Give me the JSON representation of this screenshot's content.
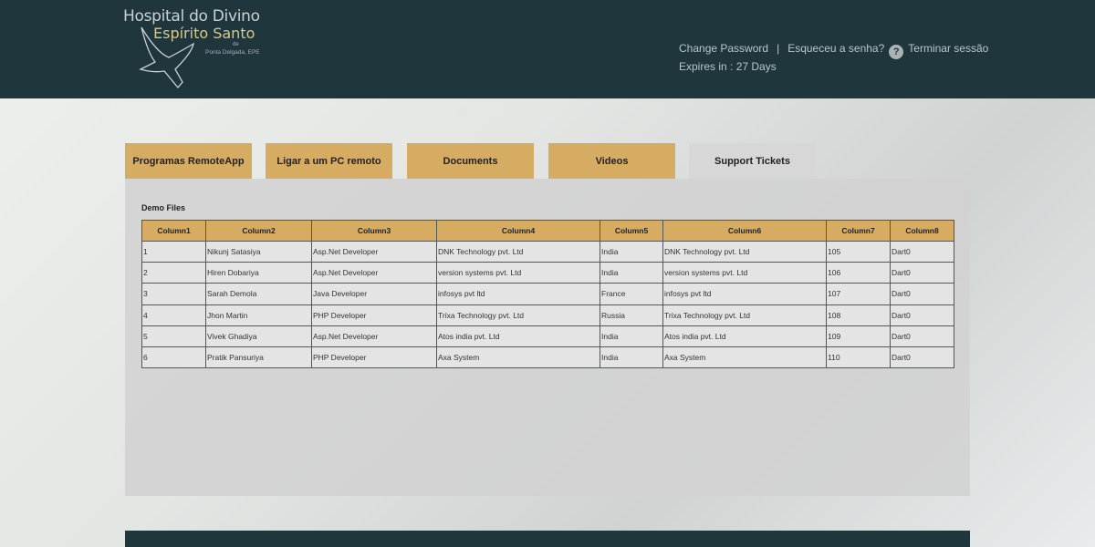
{
  "header": {
    "logo": {
      "line1": "Hospital do Divino",
      "line2": "Espírito Santo",
      "line3": "de",
      "line4": "Ponta Delgada, EPE"
    },
    "change_password": "Change Password",
    "separator": "|",
    "forgot": "Esqueceu a senha?",
    "help_icon": "?",
    "logout": "Terminar sessão",
    "expires": "Expires in : 27 Days"
  },
  "tabs": [
    {
      "label": "Programas RemoteApp"
    },
    {
      "label": "Ligar a um PC remoto"
    },
    {
      "label": "Documents"
    },
    {
      "label": "Videos"
    },
    {
      "label": "Support Tickets",
      "active": true
    }
  ],
  "panel": {
    "title": "Demo Files",
    "columns": [
      "Column1",
      "Column2",
      "Column3",
      "Column4",
      "Column5",
      "Column6",
      "Column7",
      "Column8"
    ],
    "rows": [
      [
        "1",
        "Nikunj Satasiya",
        "Asp.Net Developer",
        "DNK Technology pvt. Ltd",
        "India",
        "DNK Technology pvt. Ltd",
        "105",
        "Dart0"
      ],
      [
        "2",
        "Hiren Dobariya",
        "Asp.Net Developer",
        "version systems pvt. Ltd",
        "India",
        "version systems pvt. Ltd",
        "106",
        "Dart0"
      ],
      [
        "3",
        "Sarah Demola",
        "Java Developer",
        "infosys pvt ltd",
        "France",
        "infosys pvt ltd",
        "107",
        "Dart0"
      ],
      [
        "4",
        "Jhon Martin",
        "PHP Developer",
        "Trixa Technology pvt. Ltd",
        "Russia",
        "Trixa Technology pvt. Ltd",
        "108",
        "Dart0"
      ],
      [
        "5",
        "Vivek Ghadiya",
        "Asp.Net Developer",
        "Atos india pvt. Ltd",
        "India",
        "Atos india pvt. Ltd",
        "109",
        "Dart0"
      ],
      [
        "6",
        "Pratik Pansuriya",
        "PHP Developer",
        "Axa System",
        "India",
        "Axa System",
        "110",
        "Dart0"
      ]
    ]
  },
  "colors": {
    "header": "#1f363d",
    "tab": "#d6ac62",
    "active_tab": "#d7d7d7"
  }
}
